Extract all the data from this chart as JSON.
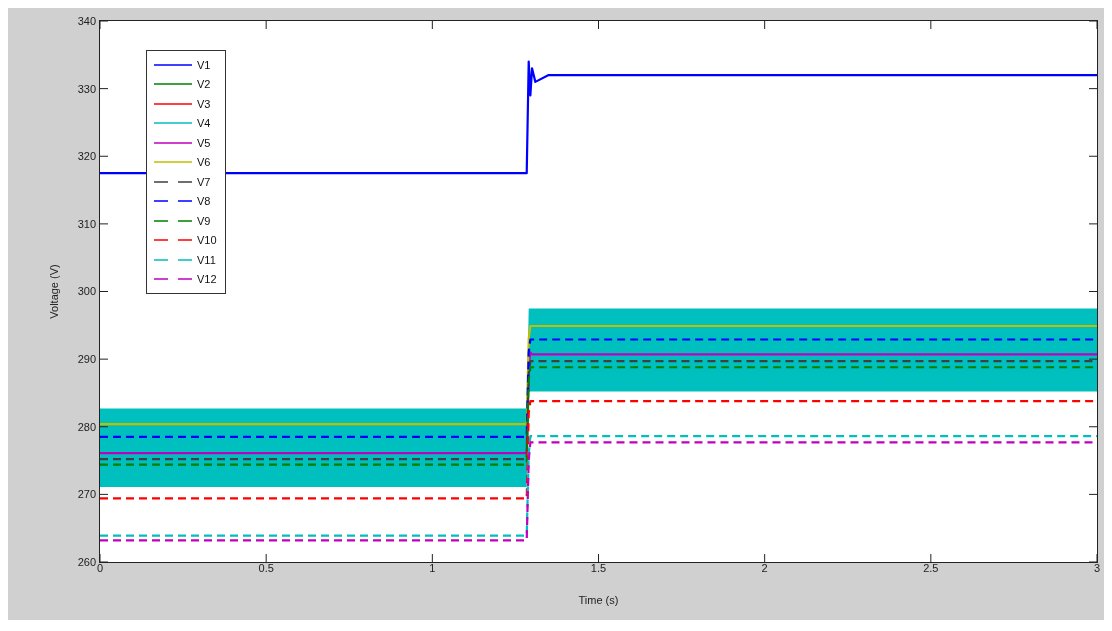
{
  "chart_data": {
    "type": "line",
    "xlabel": "Time (s)",
    "ylabel": "Voltage (V)",
    "x": [
      0,
      1.284,
      1.29,
      1.295,
      1.3,
      1.31,
      1.35,
      3
    ],
    "series": [
      {
        "name": "V1",
        "color": "#0000ff",
        "line_style": "solid",
        "values": [
          317.5,
          317.5,
          334,
          329,
          333,
          331,
          332,
          332
        ]
      },
      {
        "name": "V2",
        "color": "#008000",
        "line_style": "solid",
        "values": [
          null,
          null,
          null,
          null,
          null,
          null,
          null,
          null
        ]
      },
      {
        "name": "V3",
        "color": "#ff0000",
        "line_style": "solid",
        "values": [
          null,
          null,
          null,
          null,
          null,
          null,
          null,
          null
        ]
      },
      {
        "name": "V4",
        "color": "#00bfbf",
        "line_style": "solid",
        "values": [
          null,
          null,
          null,
          null,
          null,
          null,
          null,
          null
        ],
        "lower": [
          271.1,
          271.1,
          285.2,
          285.2,
          285.2,
          285.2,
          285.2,
          285.2
        ],
        "upper": [
          282.7,
          282.7,
          297.5,
          297.5,
          297.5,
          297.5,
          297.5,
          297.5
        ]
      },
      {
        "name": "V5",
        "color": "#bf00bf",
        "line_style": "solid",
        "values": [
          276.1,
          276.1,
          289,
          291,
          290.7,
          290.7,
          290.7,
          290.7
        ]
      },
      {
        "name": "V6",
        "color": "#bfbf00",
        "line_style": "solid",
        "values": [
          280.4,
          280.4,
          293,
          294.9,
          294.9,
          294.9,
          294.9,
          294.9
        ]
      },
      {
        "name": "V7",
        "color": "#404040",
        "line_style": "dashed",
        "values": [
          275.2,
          275.2,
          288,
          289.7,
          289.7,
          289.7,
          289.7,
          289.7
        ]
      },
      {
        "name": "V8",
        "color": "#0000ff",
        "line_style": "dashed",
        "values": [
          278.5,
          278.5,
          291,
          292.9,
          292.9,
          292.9,
          292.9,
          292.9
        ]
      },
      {
        "name": "V9",
        "color": "#008000",
        "line_style": "dashed",
        "values": [
          274.4,
          274.4,
          287,
          288.8,
          288.8,
          288.8,
          288.8,
          288.8
        ]
      },
      {
        "name": "V10",
        "color": "#ff0000",
        "line_style": "dashed",
        "values": [
          269.4,
          269.4,
          282,
          283.8,
          283.8,
          283.8,
          283.8,
          283.8
        ]
      },
      {
        "name": "V11",
        "color": "#00bfbf",
        "line_style": "dashed",
        "values": [
          263.9,
          263.9,
          276,
          278.6,
          278.6,
          278.6,
          278.6,
          278.6
        ]
      },
      {
        "name": "V12",
        "color": "#bf00bf",
        "line_style": "dashed",
        "values": [
          263.2,
          263.2,
          275,
          277.7,
          277.7,
          277.7,
          277.7,
          277.7
        ]
      }
    ],
    "xlim": [
      0,
      3
    ],
    "xticks": [
      0,
      0.5,
      1,
      1.5,
      2,
      2.5,
      3
    ],
    "ylim": [
      260,
      340
    ],
    "yticks": [
      260,
      270,
      280,
      290,
      300,
      310,
      320,
      330,
      340
    ],
    "grid": false,
    "legend": "top left",
    "marker": "none"
  }
}
